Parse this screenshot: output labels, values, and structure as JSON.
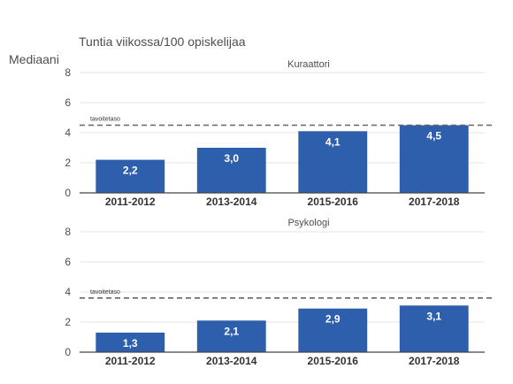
{
  "header": {
    "title": "Tuntia viikossa/100 opiskelijaa",
    "ylabel": "Mediaani"
  },
  "colors": {
    "bar": "#2e5fad",
    "target_line": "#666666",
    "grid": "#e6e6e6",
    "axis": "#444444",
    "text": "#4d4d4d",
    "bar_label": "#ffffff"
  },
  "chart_data": [
    {
      "type": "bar",
      "title": "Kuraattori",
      "categories": [
        "2011-2012",
        "2013-2014",
        "2015-2016",
        "2017-2018"
      ],
      "values": [
        2.2,
        3.0,
        4.1,
        4.5
      ],
      "value_labels": [
        "2,2",
        "3,0",
        "4,1",
        "4,5"
      ],
      "ylim": [
        0,
        8
      ],
      "yticks": [
        0,
        2,
        4,
        6,
        8
      ],
      "grid": true,
      "reference_line": {
        "label": "tavoitetaso",
        "value": 4.5
      }
    },
    {
      "type": "bar",
      "title": "Psykologi",
      "categories": [
        "2011-2012",
        "2013-2014",
        "2015-2016",
        "2017-2018"
      ],
      "values": [
        1.3,
        2.1,
        2.9,
        3.1
      ],
      "value_labels": [
        "1,3",
        "2,1",
        "2,9",
        "3,1"
      ],
      "ylim": [
        0,
        8
      ],
      "yticks": [
        0,
        2,
        4,
        6,
        8
      ],
      "grid": true,
      "reference_line": {
        "label": "tavoitetaso",
        "value": 3.6
      }
    }
  ]
}
